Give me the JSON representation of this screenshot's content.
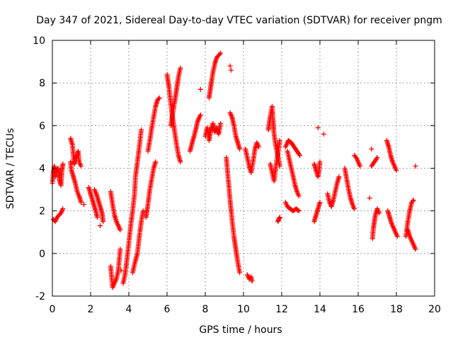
{
  "chart_data": {
    "type": "scatter",
    "title": "Day 347 of 2021, Sidereal Day-to-day VTEC variation (SDTVAR) for receiver pngm",
    "xlabel": "GPS time / hours",
    "ylabel": "SDTVAR / TECUs",
    "xlim": [
      0,
      20
    ],
    "ylim": [
      -2,
      10
    ],
    "x_ticks": [
      0,
      2,
      4,
      6,
      8,
      10,
      12,
      14,
      16,
      18,
      20
    ],
    "x_tick_labels": [
      "0",
      "2",
      "4",
      "6",
      "8",
      "10",
      "12",
      "14",
      "16",
      "18",
      "20"
    ],
    "y_ticks": [
      -2,
      0,
      2,
      4,
      6,
      8,
      10
    ],
    "y_tick_labels": [
      "-2",
      "0",
      "2",
      "4",
      "6",
      "8",
      "10"
    ],
    "grid": true,
    "marker": "+",
    "color": "#ff0000",
    "series": [
      {
        "name": "SDTVAR",
        "tracks": [
          [
            [
              0.0,
              3.3
            ],
            [
              0.05,
              3.8
            ],
            [
              0.1,
              4.1
            ],
            [
              0.15,
              3.6
            ],
            [
              0.2,
              3.9
            ],
            [
              0.3,
              4.0
            ],
            [
              0.35,
              3.5
            ],
            [
              0.45,
              3.2
            ],
            [
              0.5,
              3.9
            ],
            [
              0.55,
              4.2
            ]
          ],
          [
            [
              0.05,
              1.6
            ],
            [
              0.15,
              1.5
            ],
            [
              0.25,
              1.7
            ],
            [
              0.35,
              1.8
            ],
            [
              0.45,
              1.9
            ],
            [
              0.55,
              2.1
            ]
          ],
          [
            [
              0.95,
              5.4
            ],
            [
              1.05,
              5.1
            ],
            [
              1.1,
              4.6
            ],
            [
              1.15,
              4.2
            ],
            [
              1.25,
              4.5
            ],
            [
              1.35,
              4.8
            ],
            [
              1.4,
              4.3
            ],
            [
              1.5,
              4.1
            ]
          ],
          [
            [
              0.95,
              4.3
            ],
            [
              1.0,
              3.9
            ],
            [
              1.1,
              3.6
            ],
            [
              1.2,
              3.3
            ],
            [
              1.3,
              2.9
            ],
            [
              1.4,
              2.7
            ],
            [
              1.5,
              2.4
            ]
          ],
          [
            [
              1.9,
              3.1
            ],
            [
              2.0,
              2.8
            ],
            [
              2.1,
              2.5
            ],
            [
              2.2,
              2.2
            ],
            [
              2.3,
              1.9
            ],
            [
              2.35,
              1.7
            ]
          ],
          [
            [
              2.2,
              3.0
            ],
            [
              2.3,
              2.8
            ],
            [
              2.4,
              2.5
            ],
            [
              2.5,
              2.2
            ],
            [
              2.6,
              1.9
            ],
            [
              2.65,
              1.5
            ]
          ],
          [
            [
              3.05,
              -0.6
            ],
            [
              3.1,
              -1.1
            ],
            [
              3.15,
              -1.6
            ],
            [
              3.25,
              -1.4
            ],
            [
              3.35,
              -1.2
            ],
            [
              3.45,
              -0.8
            ],
            [
              3.5,
              -0.3
            ],
            [
              3.55,
              0.2
            ]
          ],
          [
            [
              3.05,
              2.9
            ],
            [
              3.15,
              2.3
            ],
            [
              3.25,
              1.8
            ],
            [
              3.35,
              1.5
            ],
            [
              3.45,
              1.3
            ],
            [
              3.55,
              1.1
            ]
          ],
          [
            [
              3.7,
              -1.4
            ],
            [
              3.8,
              -1.0
            ],
            [
              3.9,
              -0.3
            ],
            [
              4.0,
              0.5
            ],
            [
              4.1,
              1.3
            ],
            [
              4.2,
              2.0
            ],
            [
              4.3,
              2.8
            ],
            [
              4.35,
              3.6
            ],
            [
              4.45,
              4.3
            ],
            [
              4.55,
              5.0
            ],
            [
              4.65,
              5.8
            ]
          ],
          [
            [
              4.2,
              -0.9
            ],
            [
              4.3,
              -0.5
            ],
            [
              4.45,
              0.0
            ],
            [
              4.55,
              0.8
            ],
            [
              4.65,
              1.5
            ],
            [
              4.75,
              2.0
            ]
          ],
          [
            [
              4.9,
              1.7
            ],
            [
              5.0,
              2.3
            ],
            [
              5.1,
              3.0
            ],
            [
              5.2,
              3.5
            ],
            [
              5.3,
              4.0
            ],
            [
              5.4,
              4.3
            ]
          ],
          [
            [
              5.0,
              4.8
            ],
            [
              5.1,
              5.3
            ],
            [
              5.2,
              5.9
            ],
            [
              5.3,
              6.4
            ],
            [
              5.4,
              6.9
            ],
            [
              5.5,
              7.2
            ],
            [
              5.6,
              7.3
            ]
          ],
          [
            [
              6.0,
              8.4
            ],
            [
              6.1,
              7.8
            ],
            [
              6.2,
              7.0
            ],
            [
              6.3,
              6.3
            ],
            [
              6.4,
              5.7
            ],
            [
              6.5,
              5.1
            ],
            [
              6.6,
              4.6
            ],
            [
              6.7,
              4.3
            ]
          ],
          [
            [
              6.2,
              6.0
            ],
            [
              6.3,
              6.6
            ],
            [
              6.4,
              7.1
            ],
            [
              6.5,
              7.7
            ],
            [
              6.6,
              8.3
            ],
            [
              6.7,
              8.7
            ]
          ],
          [
            [
              7.2,
              4.8
            ],
            [
              7.35,
              5.3
            ],
            [
              7.5,
              5.8
            ],
            [
              7.6,
              6.2
            ],
            [
              7.75,
              6.5
            ]
          ],
          [
            [
              8.0,
              5.5
            ],
            [
              8.1,
              5.9
            ],
            [
              8.2,
              5.3
            ],
            [
              8.3,
              5.8
            ],
            [
              8.4,
              6.1
            ],
            [
              8.5,
              5.7
            ],
            [
              8.6,
              5.9
            ],
            [
              8.7,
              5.6
            ],
            [
              8.8,
              6.1
            ]
          ],
          [
            [
              8.2,
              7.3
            ],
            [
              8.3,
              7.9
            ],
            [
              8.4,
              8.5
            ],
            [
              8.5,
              8.9
            ],
            [
              8.6,
              9.2
            ],
            [
              8.7,
              9.3
            ],
            [
              8.8,
              9.4
            ]
          ],
          [
            [
              9.1,
              4.5
            ],
            [
              9.2,
              3.5
            ],
            [
              9.3,
              2.5
            ],
            [
              9.4,
              1.6
            ],
            [
              9.5,
              0.8
            ],
            [
              9.6,
              0.2
            ],
            [
              9.7,
              -0.4
            ],
            [
              9.8,
              -0.9
            ]
          ],
          [
            [
              9.3,
              6.6
            ],
            [
              9.4,
              6.4
            ],
            [
              9.5,
              6.0
            ],
            [
              9.6,
              5.5
            ],
            [
              9.7,
              5.2
            ],
            [
              9.8,
              4.9
            ]
          ],
          [
            [
              10.2,
              -1.0
            ],
            [
              10.3,
              -1.2
            ],
            [
              10.4,
              -1.1
            ],
            [
              10.45,
              -1.3
            ]
          ],
          [
            [
              10.1,
              4.9
            ],
            [
              10.2,
              4.5
            ],
            [
              10.3,
              4.1
            ],
            [
              10.4,
              3.8
            ],
            [
              10.5,
              4.3
            ],
            [
              10.6,
              4.9
            ],
            [
              10.7,
              5.2
            ],
            [
              10.8,
              5.0
            ]
          ],
          [
            [
              11.3,
              5.8
            ],
            [
              11.4,
              6.4
            ],
            [
              11.5,
              6.9
            ],
            [
              11.55,
              6.2
            ],
            [
              11.6,
              5.6
            ],
            [
              11.7,
              5.0
            ],
            [
              11.8,
              4.6
            ],
            [
              11.9,
              4.1
            ]
          ],
          [
            [
              11.4,
              4.2
            ],
            [
              11.5,
              3.8
            ],
            [
              11.6,
              3.4
            ],
            [
              11.7,
              4.1
            ],
            [
              11.8,
              4.7
            ],
            [
              11.9,
              5.3
            ]
          ],
          [
            [
              11.8,
              1.5
            ],
            [
              11.85,
              1.6
            ],
            [
              11.9,
              1.7
            ]
          ],
          [
            [
              12.2,
              2.4
            ],
            [
              12.3,
              2.2
            ],
            [
              12.45,
              2.1
            ],
            [
              12.6,
              2.0
            ],
            [
              12.75,
              2.1
            ],
            [
              12.9,
              2.0
            ]
          ],
          [
            [
              12.3,
              4.8
            ],
            [
              12.4,
              4.4
            ],
            [
              12.5,
              4.0
            ],
            [
              12.6,
              3.6
            ],
            [
              12.7,
              3.2
            ],
            [
              12.8,
              2.9
            ],
            [
              12.9,
              2.7
            ]
          ],
          [
            [
              12.2,
              5.0
            ],
            [
              12.35,
              5.3
            ],
            [
              12.5,
              5.2
            ],
            [
              12.65,
              5.0
            ],
            [
              12.8,
              4.8
            ],
            [
              12.95,
              4.6
            ]
          ],
          [
            [
              13.7,
              4.2
            ],
            [
              13.8,
              3.9
            ],
            [
              13.9,
              3.6
            ],
            [
              13.95,
              3.9
            ],
            [
              14.0,
              4.3
            ]
          ],
          [
            [
              13.7,
              1.5
            ],
            [
              13.8,
              1.8
            ],
            [
              13.9,
              2.1
            ],
            [
              14.0,
              2.4
            ]
          ],
          [
            [
              14.4,
              2.8
            ],
            [
              14.5,
              2.4
            ],
            [
              14.6,
              2.2
            ],
            [
              14.7,
              2.5
            ],
            [
              14.8,
              2.9
            ],
            [
              14.9,
              3.3
            ],
            [
              15.0,
              3.6
            ]
          ],
          [
            [
              15.3,
              4.0
            ],
            [
              15.4,
              3.5
            ],
            [
              15.5,
              3.0
            ],
            [
              15.6,
              2.6
            ],
            [
              15.7,
              2.3
            ],
            [
              15.8,
              2.1
            ]
          ],
          [
            [
              15.8,
              4.6
            ],
            [
              15.9,
              4.5
            ],
            [
              16.0,
              4.3
            ],
            [
              16.1,
              4.1
            ]
          ],
          [
            [
              16.7,
              4.1
            ],
            [
              16.85,
              4.3
            ],
            [
              17.0,
              4.5
            ]
          ],
          [
            [
              16.75,
              0.7
            ],
            [
              16.8,
              1.2
            ],
            [
              16.9,
              1.8
            ],
            [
              17.0,
              2.1
            ],
            [
              17.1,
              1.9
            ]
          ],
          [
            [
              17.5,
              5.3
            ],
            [
              17.6,
              5.0
            ],
            [
              17.7,
              4.6
            ],
            [
              17.8,
              4.3
            ],
            [
              17.9,
              4.1
            ],
            [
              18.0,
              3.9
            ]
          ],
          [
            [
              17.55,
              2.0
            ],
            [
              17.65,
              1.7
            ],
            [
              17.75,
              1.4
            ],
            [
              17.85,
              1.2
            ],
            [
              17.95,
              1.0
            ],
            [
              18.05,
              0.8
            ]
          ],
          [
            [
              18.5,
              0.8
            ],
            [
              18.6,
              1.5
            ],
            [
              18.7,
              2.0
            ],
            [
              18.8,
              2.4
            ],
            [
              18.9,
              2.5
            ]
          ],
          [
            [
              18.6,
              1.1
            ],
            [
              18.7,
              0.8
            ],
            [
              18.8,
              0.6
            ],
            [
              18.9,
              0.4
            ],
            [
              19.0,
              0.2
            ]
          ]
        ],
        "scattered": [
          [
            1.65,
            2.3
          ],
          [
            2.5,
            1.3
          ],
          [
            3.6,
            -0.8
          ],
          [
            7.75,
            7.7
          ],
          [
            9.3,
            8.8
          ],
          [
            9.35,
            8.6
          ],
          [
            13.9,
            5.9
          ],
          [
            14.2,
            5.6
          ],
          [
            16.6,
            2.6
          ],
          [
            16.7,
            4.9
          ],
          [
            19.0,
            4.1
          ]
        ]
      }
    ]
  }
}
